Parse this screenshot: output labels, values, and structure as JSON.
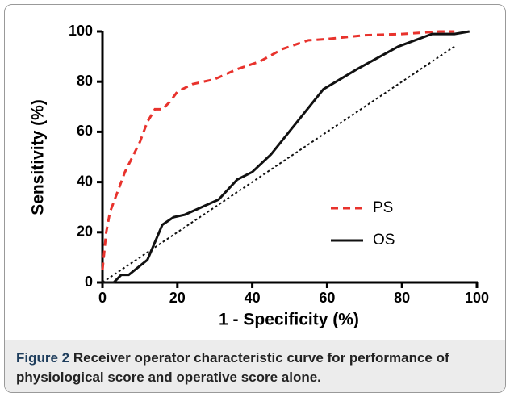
{
  "chart_data": {
    "type": "line",
    "xlabel": "1 - Specificity (%)",
    "ylabel": "Sensitivity (%)",
    "xlim": [
      0,
      100
    ],
    "ylim": [
      0,
      100
    ],
    "xticks": [
      0,
      20,
      40,
      60,
      80,
      100
    ],
    "yticks": [
      0,
      20,
      40,
      60,
      80,
      100
    ],
    "series": [
      {
        "name": "PS",
        "color": "#e8322c",
        "dash": "dashed",
        "x": [
          0,
          1,
          2,
          4,
          6,
          8,
          10,
          12,
          14,
          16,
          18,
          20,
          24,
          30,
          36,
          42,
          48,
          55,
          60,
          70,
          80,
          90,
          94
        ],
        "values": [
          5,
          20,
          28,
          36,
          44,
          50,
          56,
          64,
          69,
          69,
          72,
          76,
          79,
          81,
          85,
          88,
          93,
          96.5,
          97,
          98.5,
          99,
          100,
          100
        ]
      },
      {
        "name": "OS",
        "color": "#111111",
        "dash": "solid",
        "x": [
          0,
          3,
          5,
          7,
          12,
          16,
          19,
          22,
          31,
          36,
          40,
          45,
          52,
          59,
          68,
          79,
          88,
          94,
          98
        ],
        "values": [
          0,
          0,
          3,
          3,
          9,
          23,
          26,
          27,
          33,
          41,
          44,
          51,
          64,
          77,
          85,
          94,
          99,
          99,
          100
        ]
      },
      {
        "color": "#111111",
        "dash": "dotted",
        "x": [
          0,
          94
        ],
        "values": [
          0,
          94
        ]
      }
    ]
  },
  "caption": {
    "label": "Figure 2",
    "text": "Receiver operator characteristic curve for performance of physiological score and operative score alone."
  }
}
